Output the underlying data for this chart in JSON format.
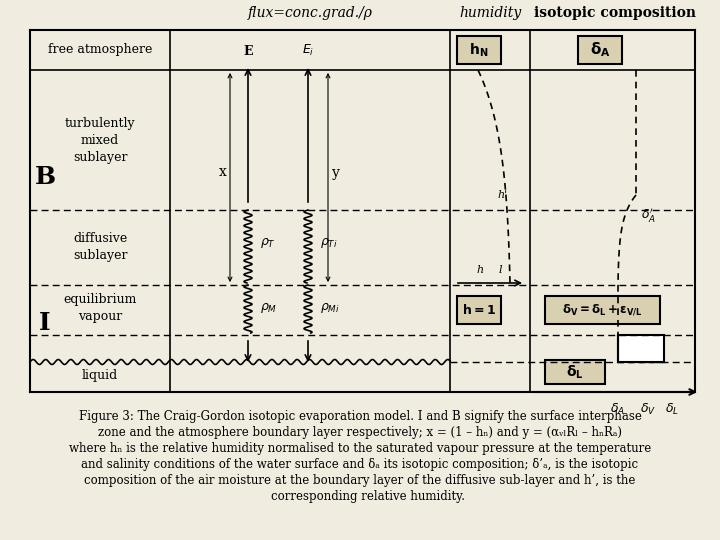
{
  "bg_color": "#f0ede0",
  "fig_width": 7.2,
  "fig_height": 5.4,
  "dpi": 100,
  "col_headers": [
    "flux=conc.grad./ρ",
    "humidity",
    "isotopic composition"
  ],
  "row_labels": [
    "free atmosphere",
    "turbulently\nmixed\nsublayer",
    "diffusive\nsublayer",
    "equilibrium\nvapour",
    "liquid"
  ],
  "caption_lines": [
    "Figure 3: The Craig-Gordon isotopic evaporation model. I and B signify the surface interphase",
    "zone and the atmosphere boundary layer respectively; x = (1 – hₙ) and y = (αᵥₗRₗ – hₙRₐ)",
    "where hₙ is the relative humidity normalised to the saturated vapour pressure at the temperature",
    "and salinity conditions of the water surface and δₐ its isotopic composition; δ’ₐ, is the isotopic",
    "composition of the air moisture at the boundary layer of the diffusive sub-layer and h’, is the",
    "    corresponding relative humidity."
  ]
}
